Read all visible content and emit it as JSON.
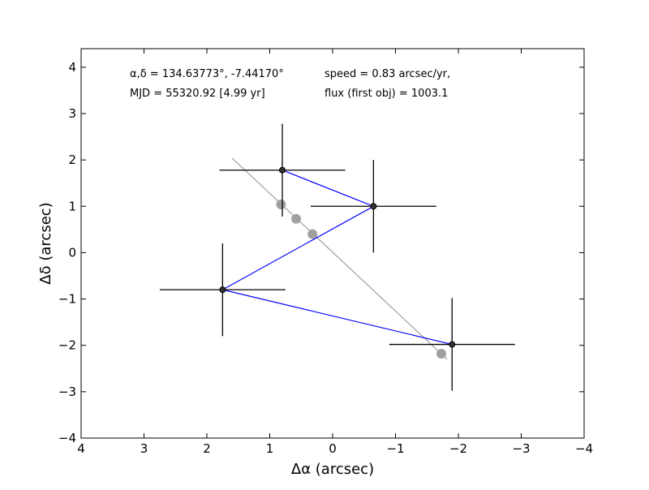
{
  "chart_data": {
    "type": "scatter",
    "xlabel": "Δα (arcsec)",
    "ylabel": "Δδ (arcsec)",
    "xlim": [
      4,
      -4
    ],
    "ylim": [
      -4,
      4.4
    ],
    "xticks": [
      4,
      3,
      2,
      1,
      0,
      -1,
      -2,
      -3,
      -4
    ],
    "yticks": [
      -4,
      -3,
      -2,
      -1,
      0,
      1,
      2,
      3,
      4
    ],
    "xtick_labels": [
      "4",
      "3",
      "2",
      "1",
      "0",
      "−1",
      "−2",
      "−3",
      "−4"
    ],
    "ytick_labels": [
      "−4",
      "−3",
      "−2",
      "−1",
      "0",
      "1",
      "2",
      "3",
      "4"
    ],
    "grid": false,
    "annotations": [
      "α,δ = 134.63773°, -7.44170°",
      "speed = 0.83 arcsec/yr,",
      "MJD = 55320.92 [4.99 yr]",
      "flux (first obj) = 1003.1"
    ],
    "series": [
      {
        "kind": "measured_positions",
        "color": "#0000ff",
        "marker_color": "#333333",
        "x": [
          0.8,
          -0.65,
          1.75,
          -1.9
        ],
        "y": [
          1.78,
          1.0,
          -0.8,
          -1.98
        ],
        "xerr": [
          1.0,
          1.0,
          1.0,
          1.0
        ],
        "yerr": [
          1.0,
          1.0,
          1.0,
          1.0
        ]
      },
      {
        "kind": "model_positions",
        "color": "#a0a0a0",
        "x": [
          0.82,
          0.58,
          0.32,
          -1.73
        ],
        "y": [
          1.04,
          0.73,
          0.4,
          -2.18
        ]
      },
      {
        "kind": "model_track",
        "color": "#a0a0a0",
        "x": [
          1.6,
          -1.82
        ],
        "y": [
          2.04,
          -2.3
        ]
      }
    ]
  }
}
